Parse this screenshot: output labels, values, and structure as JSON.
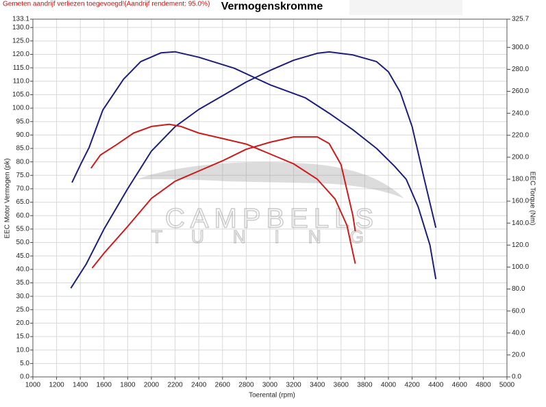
{
  "chart_data": {
    "type": "line",
    "title": "Vermogenskromme",
    "subtitle": "Gemeten aandrijf verliezen toegevoegd!(Aandrijf rendement: 95.0%)",
    "x_label": "Toerental (rpm)",
    "y_label": "EEC Motor Vermogen (pk)",
    "y2_label": "EEC Torque (Nm)",
    "watermark": [
      "CAMPBELLS",
      "TUNING"
    ],
    "grid": true,
    "xlim": [
      1000,
      5000
    ],
    "xticks": [
      1000,
      1200,
      1400,
      1600,
      1800,
      2000,
      2200,
      2400,
      2600,
      2800,
      3000,
      3200,
      3400,
      3600,
      3800,
      4000,
      4200,
      4400,
      4600,
      4800,
      5000
    ],
    "ylim": [
      0,
      133.1
    ],
    "yticks": [
      {
        "value": 0,
        "label": "0.0"
      },
      {
        "value": 5,
        "label": "5.0"
      },
      {
        "value": 10,
        "label": "10.0"
      },
      {
        "value": 15,
        "label": "15.0"
      },
      {
        "value": 20,
        "label": "20.0"
      },
      {
        "value": 25,
        "label": "25.0"
      },
      {
        "value": 30,
        "label": "30.0"
      },
      {
        "value": 35,
        "label": "35.0"
      },
      {
        "value": 40,
        "label": "40.0"
      },
      {
        "value": 45,
        "label": "45.0"
      },
      {
        "value": 50,
        "label": "50.0"
      },
      {
        "value": 55,
        "label": "55.0"
      },
      {
        "value": 60,
        "label": "60.0"
      },
      {
        "value": 65,
        "label": "65.0"
      },
      {
        "value": 70,
        "label": "70.0"
      },
      {
        "value": 75,
        "label": "75.0"
      },
      {
        "value": 80,
        "label": "80.0"
      },
      {
        "value": 85,
        "label": "85.0"
      },
      {
        "value": 90,
        "label": "90.0"
      },
      {
        "value": 95,
        "label": "95.0"
      },
      {
        "value": 100,
        "label": "100.0"
      },
      {
        "value": 105,
        "label": "105.0"
      },
      {
        "value": 110,
        "label": "110.0"
      },
      {
        "value": 115,
        "label": "115.0"
      },
      {
        "value": 120,
        "label": "120.0"
      },
      {
        "value": 125,
        "label": "125.0"
      },
      {
        "value": 130,
        "label": "130.0"
      },
      133.1
    ],
    "y2lim": [
      0,
      325.7
    ],
    "y2ticks": [
      {
        "value": 0,
        "label": "0.0"
      },
      {
        "value": 20,
        "label": "20.0"
      },
      {
        "value": 40,
        "label": "40.0"
      },
      {
        "value": 60,
        "label": "60.0"
      },
      {
        "value": 80,
        "label": "80.0"
      },
      {
        "value": 100,
        "label": "100.0"
      },
      {
        "value": 120,
        "label": "120.0"
      },
      {
        "value": 140,
        "label": "140.0"
      },
      {
        "value": 160,
        "label": "160.0"
      },
      {
        "value": 180,
        "label": "180.0"
      },
      {
        "value": 200,
        "label": "200.0"
      },
      {
        "value": 220,
        "label": "220.0"
      },
      {
        "value": 240,
        "label": "240.0"
      },
      {
        "value": 260,
        "label": "260.0"
      },
      {
        "value": 280,
        "label": "280.0"
      },
      {
        "value": 300,
        "label": "300.0"
      },
      325.7
    ],
    "series": [
      {
        "color": "#1c1c7c",
        "axis": "y2",
        "x": [
          1330,
          1405,
          1475,
          1590,
          1765,
          1910,
          2080,
          2200,
          2400,
          2700,
          3000,
          3300,
          3500,
          3700,
          3900,
          4050,
          4150,
          4250,
          4350,
          4400
        ],
        "values": [
          177,
          194,
          209,
          243,
          271,
          287,
          295,
          296,
          291,
          281,
          266,
          254,
          240,
          225,
          208,
          192,
          180,
          155,
          120,
          89
        ]
      },
      {
        "color": "#1c1c7c",
        "axis": "y",
        "x": [
          1320,
          1450,
          1600,
          1800,
          2000,
          2200,
          2400,
          2600,
          2800,
          3000,
          3200,
          3400,
          3500,
          3700,
          3900,
          4000,
          4100,
          4200,
          4300,
          4400
        ],
        "values": [
          33,
          42,
          55,
          70,
          84,
          93.1,
          99.5,
          104.6,
          109.7,
          114,
          117.8,
          120.4,
          120.9,
          119.8,
          117.3,
          113.5,
          105.9,
          93.1,
          74,
          55.5
        ]
      },
      {
        "color": "#cc1a1a",
        "axis": "y2",
        "x": [
          1490,
          1570,
          1700,
          1850,
          2000,
          2150,
          2250,
          2400,
          2600,
          2800,
          3000,
          3200,
          3400,
          3550,
          3650,
          3720
        ],
        "values": [
          190,
          202,
          211,
          222,
          228,
          230,
          228,
          222,
          217,
          212,
          203,
          194,
          180,
          162,
          138,
          103
        ]
      },
      {
        "color": "#cc1a1a",
        "axis": "y",
        "x": [
          1500,
          1600,
          1800,
          2000,
          2200,
          2400,
          2600,
          2800,
          3000,
          3200,
          3400,
          3500,
          3600,
          3700,
          3720
        ],
        "values": [
          40.5,
          46,
          56,
          66.4,
          72.8,
          76.6,
          80.4,
          84.7,
          87.3,
          89.3,
          89.3,
          86.8,
          79,
          60,
          54.2
        ]
      }
    ]
  }
}
